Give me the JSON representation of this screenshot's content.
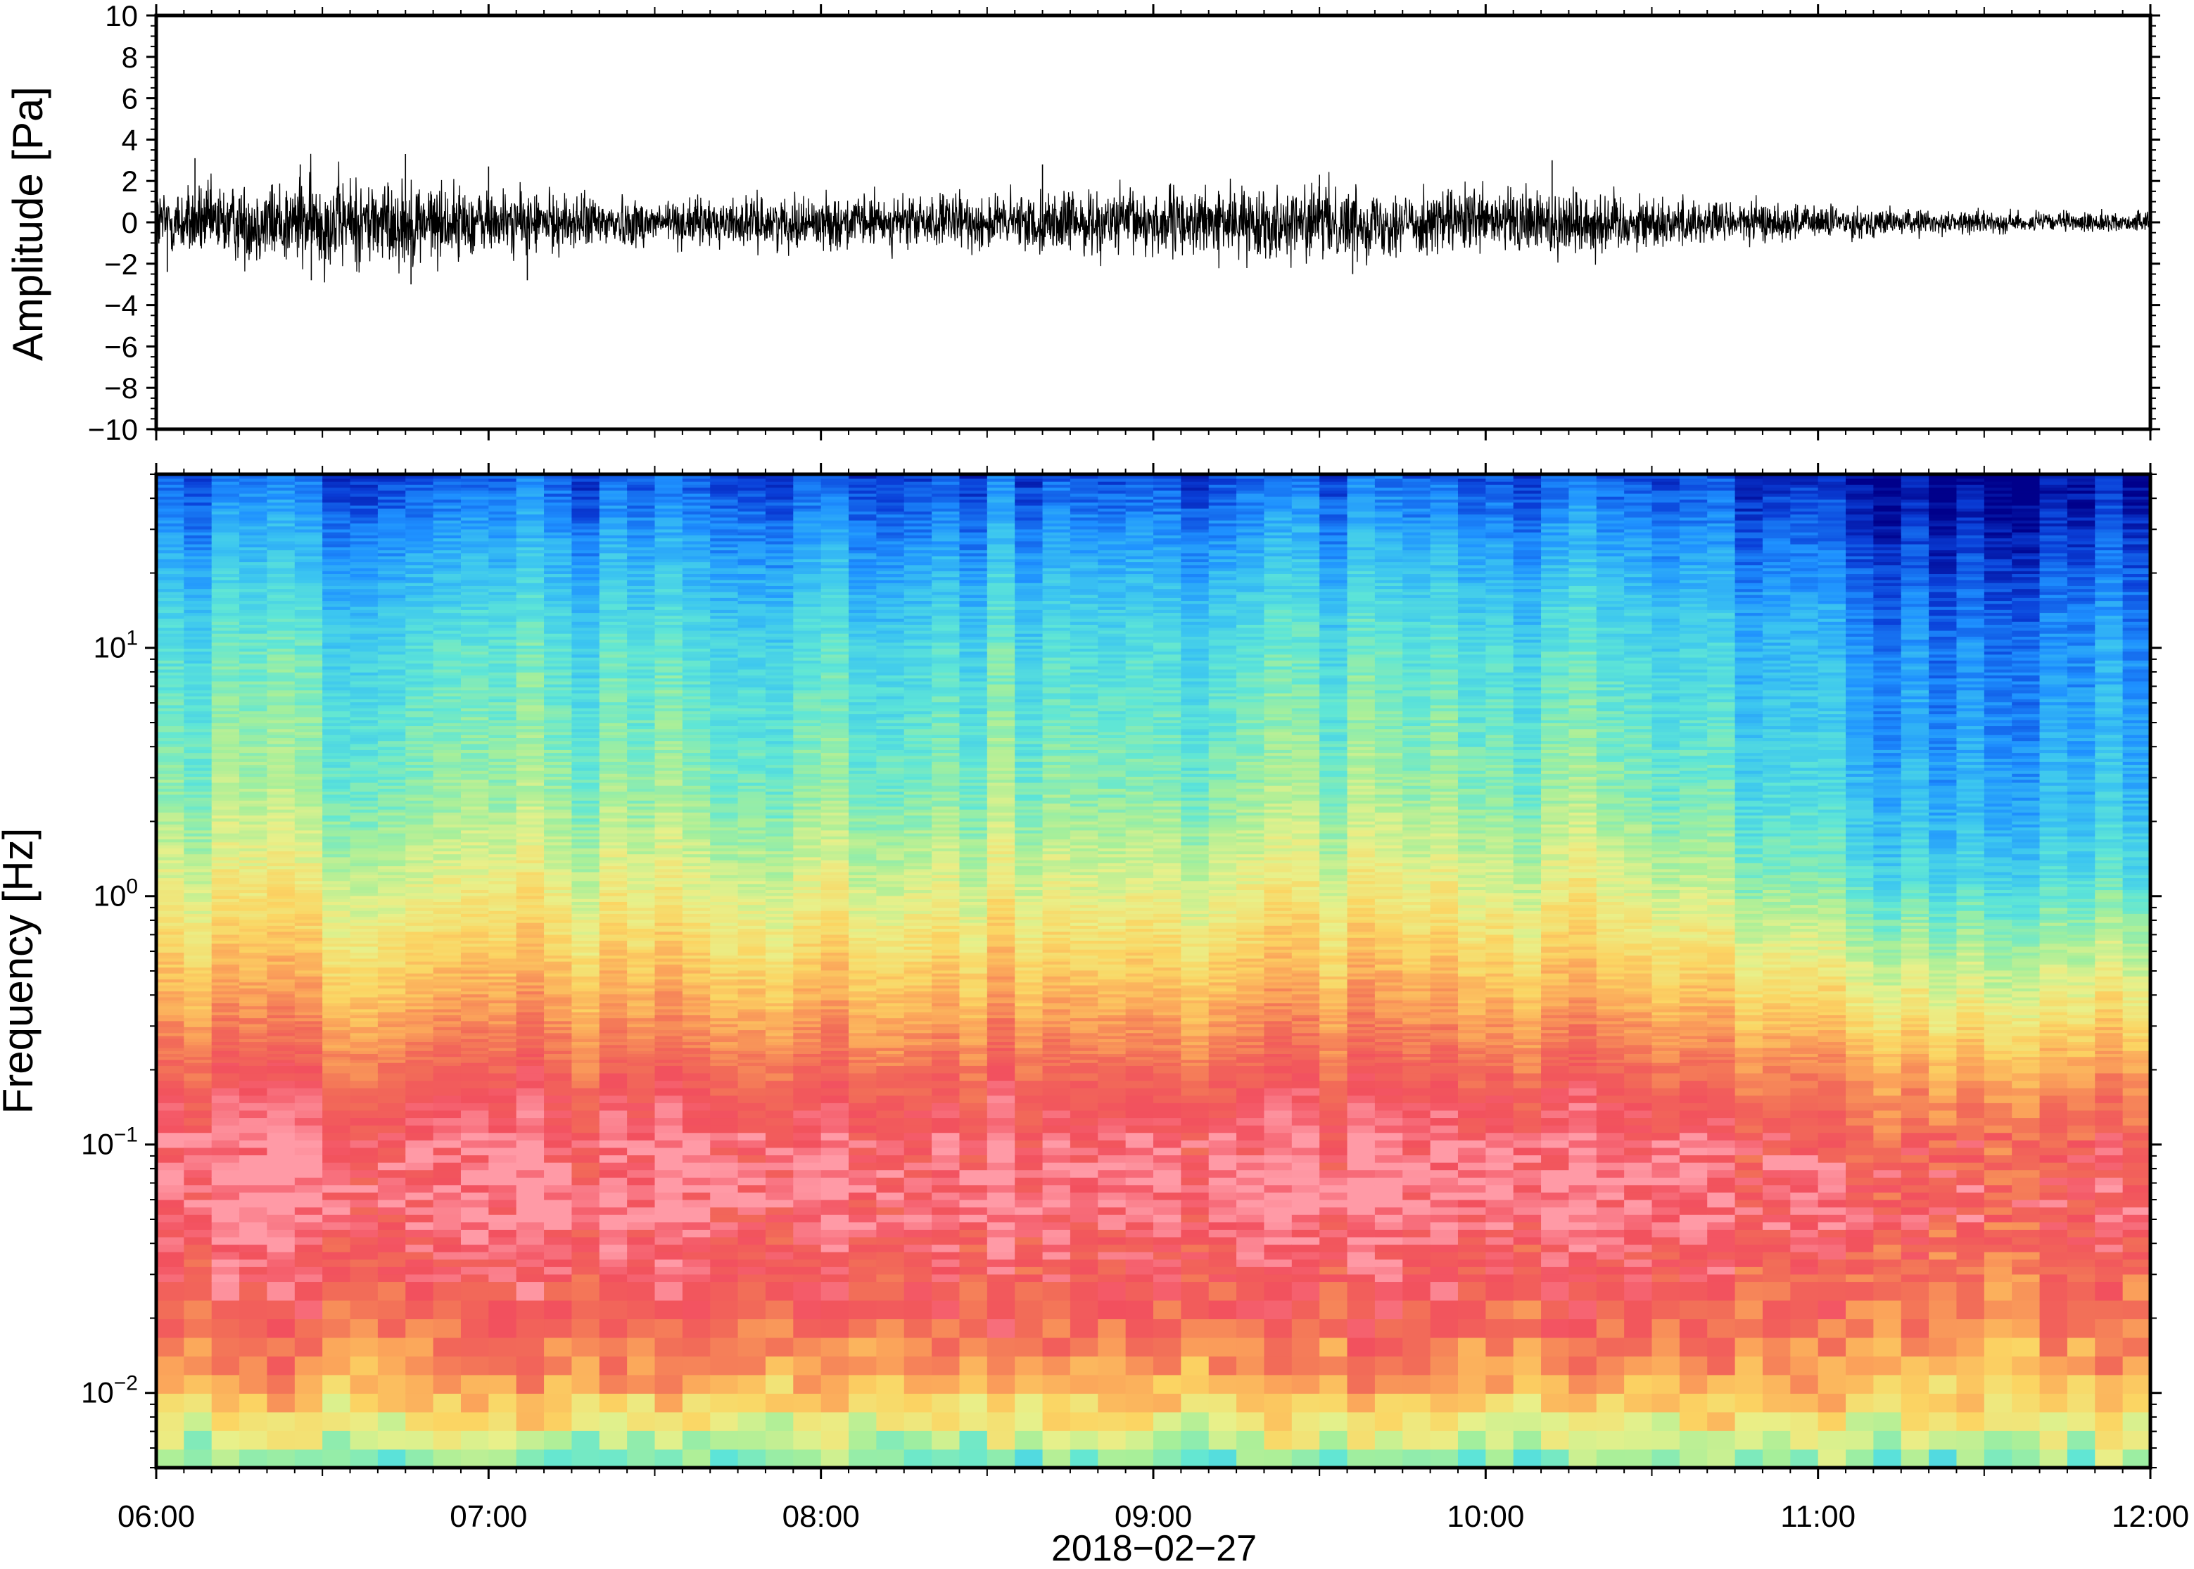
{
  "chart_data": [
    {
      "type": "line",
      "ylabel": "Amplitude [Pa]",
      "ylim": [
        -10,
        10
      ],
      "yticks": [
        -10,
        -8,
        -6,
        -4,
        -2,
        0,
        2,
        4,
        6,
        8,
        10
      ],
      "ytick_labels": [
        "−10",
        "−8",
        "−6",
        "−4",
        "−2",
        "0",
        "2",
        "4",
        "6",
        "8",
        "10"
      ],
      "xlim": [
        "2018-02-27 06:00",
        "2018-02-27 12:00"
      ],
      "series": [
        {
          "color": "#000000",
          "envelope_x_hours": [
            6.0,
            6.25,
            6.5,
            6.75,
            7.0,
            7.25,
            7.5,
            7.75,
            8.0,
            8.25,
            8.5,
            8.75,
            9.0,
            9.25,
            9.5,
            9.75,
            10.0,
            10.25,
            10.5,
            10.75,
            11.0,
            11.25,
            11.5,
            11.75,
            12.0
          ],
          "envelope_pa": [
            1.6,
            1.8,
            2.2,
            2.0,
            1.5,
            1.3,
            1.1,
            1.1,
            1.2,
            1.2,
            1.3,
            1.4,
            1.6,
            1.5,
            1.7,
            1.5,
            1.5,
            1.7,
            1.2,
            1.0,
            0.8,
            0.6,
            0.5,
            0.45,
            0.45
          ],
          "peaks": [
            {
              "x": "06:07",
              "y": 3.1
            },
            {
              "x": "06:45",
              "y": 3.3
            },
            {
              "x": "06:46",
              "y": -3.0
            },
            {
              "x": "07:00",
              "y": 2.7
            },
            {
              "x": "07:07",
              "y": -2.8
            },
            {
              "x": "06:26",
              "y": 2.8
            },
            {
              "x": "06:28",
              "y": -2.8
            },
            {
              "x": "08:40",
              "y": 2.8
            },
            {
              "x": "09:30",
              "y": 2.3
            },
            {
              "x": "10:12",
              "y": 3.0
            },
            {
              "x": "09:36",
              "y": -2.5
            },
            {
              "x": "06:02",
              "y": -2.4
            }
          ]
        }
      ]
    },
    {
      "type": "heatmap",
      "xlabel": "2018−02−27",
      "ylabel": "Frequency [Hz]",
      "yscale": "log",
      "ylim": [
        0.005,
        50
      ],
      "yticks": [
        0.01,
        0.1,
        1,
        10
      ],
      "ytick_labels": [
        {
          "base": "10",
          "exp": "−2"
        },
        {
          "base": "10",
          "exp": "−1"
        },
        {
          "base": "10",
          "exp": "0"
        },
        {
          "base": "10",
          "exp": "1"
        }
      ],
      "xlim": [
        "2018-02-27 06:00",
        "2018-02-27 12:00"
      ],
      "x_hours": [
        6,
        7,
        8,
        9,
        10,
        11,
        12
      ],
      "xtick_labels": [
        "06:00",
        "07:00",
        "08:00",
        "09:00",
        "10:00",
        "11:00",
        "12:00"
      ],
      "colormap": [
        "#00008b",
        "#0a3fd8",
        "#1e90ff",
        "#3cc6f0",
        "#5fe6d6",
        "#a6ef9a",
        "#e8f08a",
        "#fbd563",
        "#fba45a",
        "#f26d58",
        "#f2505e",
        "#ff9aa6"
      ],
      "profile_logf": [
        -2.3,
        -2.2,
        -2.05,
        -1.9,
        -1.7,
        -1.4,
        -1.15,
        -0.85,
        -0.65,
        -0.45,
        -0.2,
        0.1,
        0.4,
        0.7,
        1.0,
        1.2,
        1.4,
        1.7
      ],
      "profile_level_early": [
        4.2,
        5.5,
        7.0,
        8.3,
        9.3,
        10.2,
        10.5,
        10.0,
        9.0,
        8.0,
        6.9,
        5.8,
        4.8,
        4.3,
        3.8,
        3.2,
        2.5,
        1.3
      ],
      "profile_level_late": [
        4.5,
        5.5,
        7.0,
        7.9,
        8.7,
        9.5,
        9.7,
        8.8,
        7.7,
        6.5,
        5.2,
        3.6,
        2.8,
        2.4,
        2.1,
        1.7,
        1.1,
        0.2
      ],
      "late_start_hour": 10.9
    }
  ]
}
